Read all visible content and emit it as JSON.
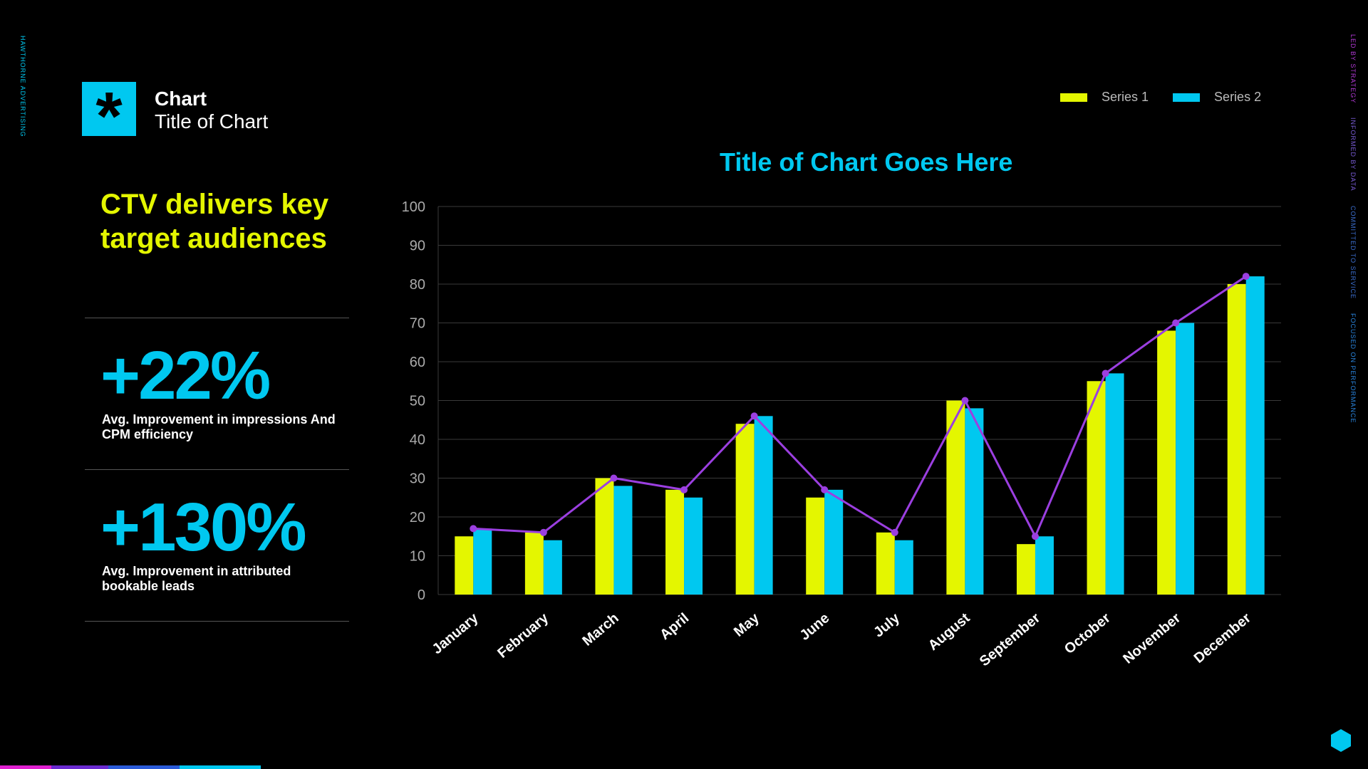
{
  "side_left": "HAWTHORNE ADVERTISING",
  "side_right": [
    {
      "text": "LED BY STRATEGY",
      "color": "#b43ad8"
    },
    {
      "text": "INFORMED BY DATA",
      "color": "#7a5cd6"
    },
    {
      "text": "COMMITTED TO SERVICE",
      "color": "#3c6fd0"
    },
    {
      "text": "FOCUSED ON PERFORMANCE",
      "color": "#2a86e0"
    }
  ],
  "header": {
    "logo_glyph": "*",
    "label": "Chart",
    "subtitle": "Title of Chart"
  },
  "headline": "CTV delivers key target audiences",
  "stats": [
    {
      "value": "+22%",
      "description": "Avg. Improvement in impressions And CPM efficiency"
    },
    {
      "value": "+130%",
      "description": "Avg. Improvement in attributed bookable leads"
    }
  ],
  "colors": {
    "series1": "#e4f600",
    "series2": "#00c8f0",
    "trend": "#9b3fe0",
    "accent": "#00c8f0"
  },
  "chart_data": {
    "type": "bar",
    "title": "Title of Chart Goes Here",
    "xlabel": "",
    "ylabel": "",
    "ylim": [
      0,
      100
    ],
    "yticks": [
      0,
      10,
      20,
      30,
      40,
      50,
      60,
      70,
      80,
      90,
      100
    ],
    "grid": true,
    "legend_position": "top-right",
    "categories": [
      "January",
      "February",
      "March",
      "April",
      "May",
      "June",
      "July",
      "August",
      "September",
      "October",
      "November",
      "December"
    ],
    "series": [
      {
        "name": "Series 1",
        "color": "#e4f600",
        "values": [
          15,
          16,
          30,
          27,
          44,
          25,
          16,
          50,
          13,
          55,
          68,
          80
        ]
      },
      {
        "name": "Series 2",
        "color": "#00c8f0",
        "values": [
          17,
          14,
          28,
          25,
          46,
          27,
          14,
          48,
          15,
          57,
          70,
          82
        ]
      }
    ],
    "trend_line": {
      "color": "#9b3fe0",
      "values": [
        17,
        16,
        30,
        27,
        46,
        27,
        16,
        50,
        15,
        57,
        70,
        82
      ]
    }
  }
}
